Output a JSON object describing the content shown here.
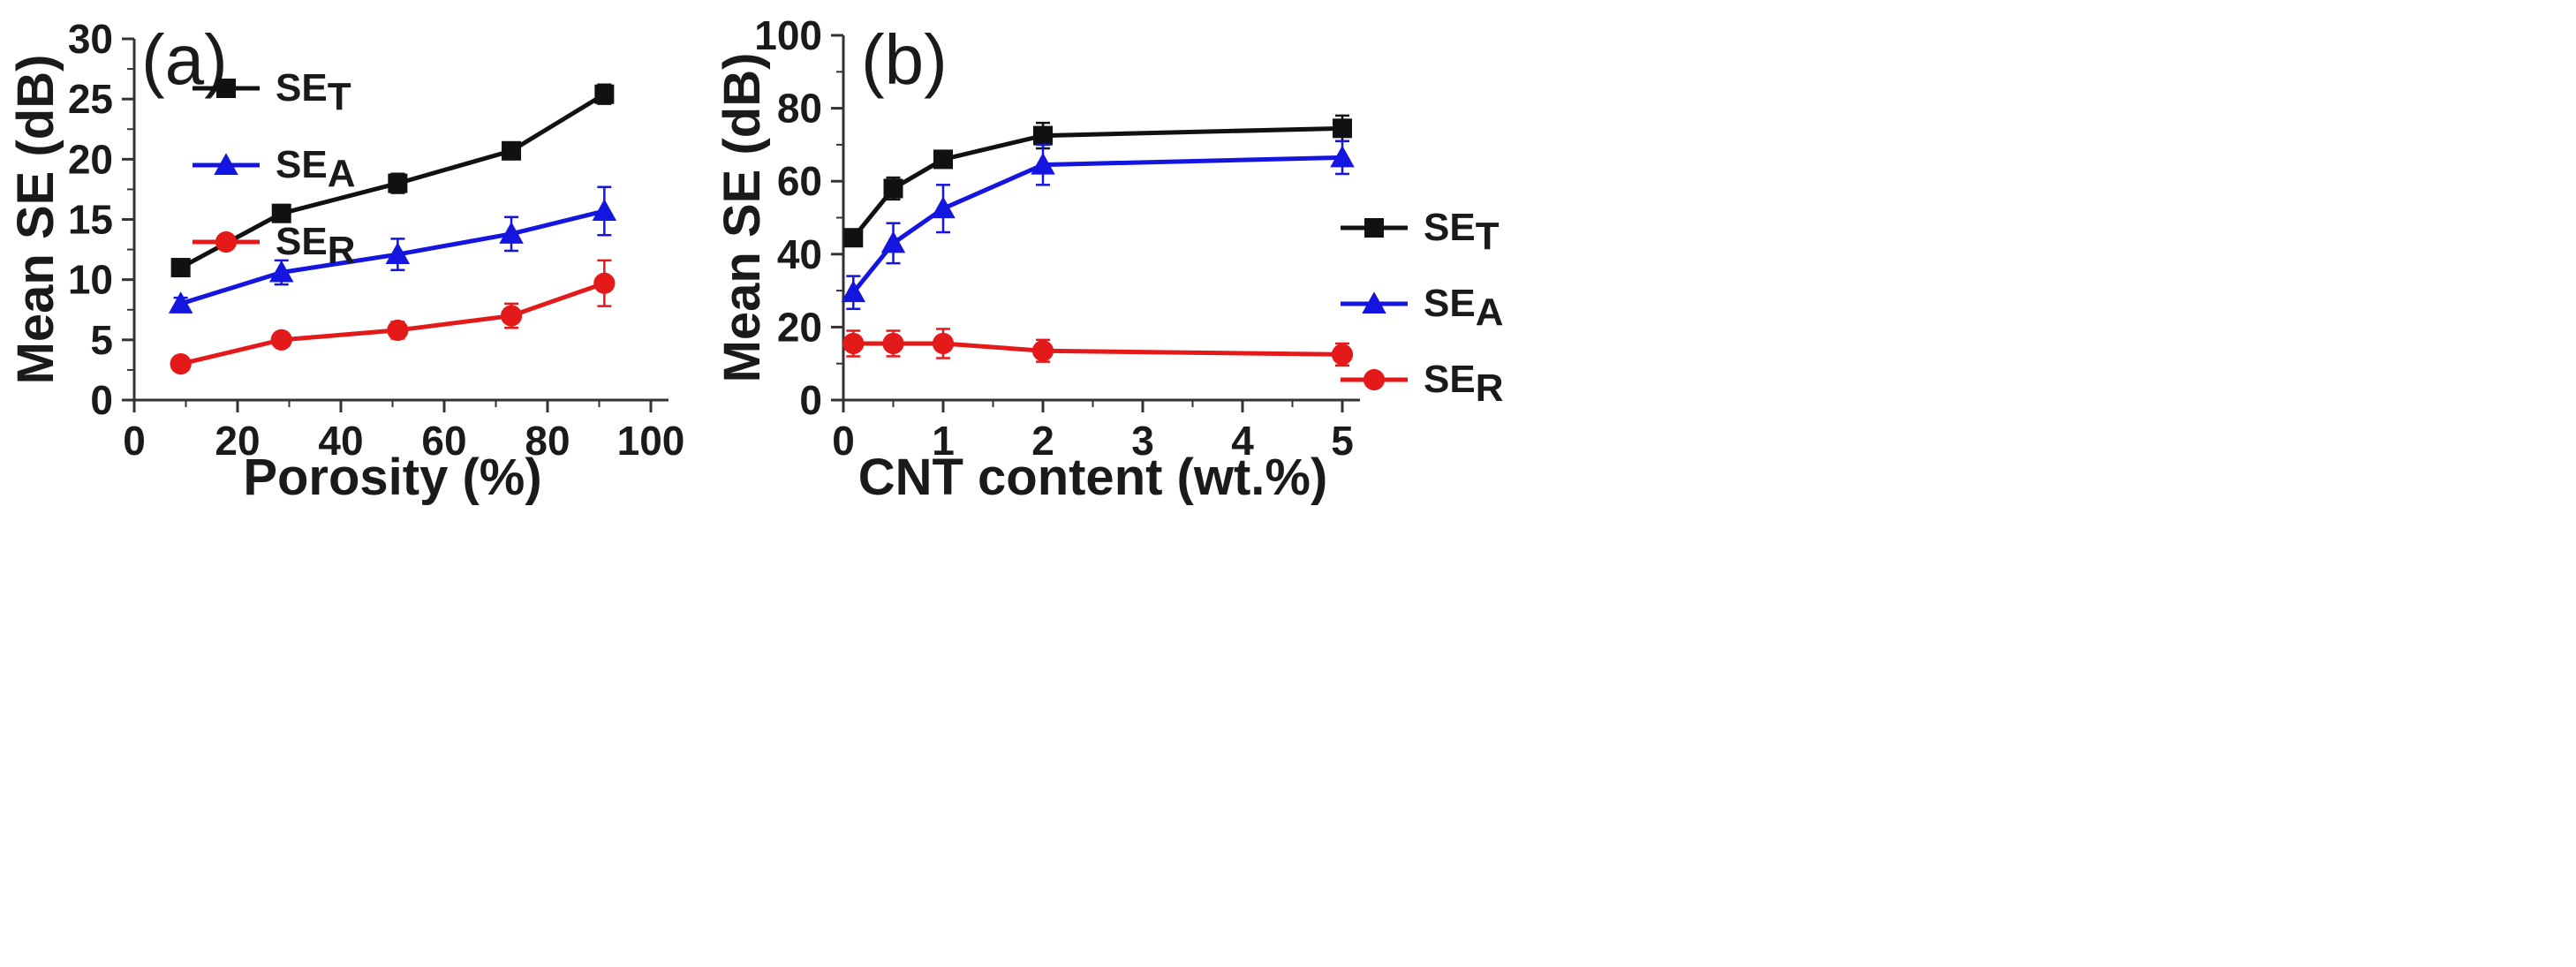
{
  "chart_data": [
    {
      "type": "line",
      "panel_label": "(a)",
      "xlabel": "Porosity (%)",
      "ylabel": "Mean SE (dB)",
      "xlim": [
        0,
        100
      ],
      "ylim": [
        0,
        30
      ],
      "xticks": [
        0,
        20,
        40,
        60,
        80,
        100
      ],
      "yticks": [
        0,
        5,
        10,
        15,
        20,
        25,
        30
      ],
      "xtick_labels": [
        "0",
        "20",
        "40",
        "60",
        "80",
        "100"
      ],
      "ytick_labels": [
        "0",
        "5",
        "10",
        "15",
        "20",
        "25",
        "30"
      ],
      "legend_position": "top-left",
      "x": [
        9,
        28.5,
        51,
        73,
        91
      ],
      "series": [
        {
          "name": "SET",
          "legend_base": "SE",
          "legend_sub": "T",
          "color": "#111111",
          "marker": "square",
          "values": [
            11,
            15.5,
            18,
            20.7,
            25.4
          ],
          "errors": [
            0.6,
            0.7,
            0.8,
            0.6,
            0.8
          ]
        },
        {
          "name": "SEA",
          "legend_base": "SE",
          "legend_sub": "A",
          "color": "#1515e0",
          "marker": "triangle",
          "values": [
            8,
            10.6,
            12.1,
            13.8,
            15.7
          ],
          "errors": [
            0.5,
            1.0,
            1.3,
            1.4,
            2.0
          ]
        },
        {
          "name": "SER",
          "legend_base": "SE",
          "legend_sub": "R",
          "color": "#e41a1a",
          "marker": "circle",
          "values": [
            3,
            5,
            5.8,
            7,
            9.7
          ],
          "errors": [
            0.3,
            0.4,
            0.7,
            1.0,
            1.9
          ]
        }
      ]
    },
    {
      "type": "line",
      "panel_label": "(b)",
      "xlabel": "CNT content (wt.%)",
      "ylabel": "Mean SE (dB)",
      "xlim": [
        0,
        5
      ],
      "ylim": [
        0,
        100
      ],
      "xticks": [
        0,
        1,
        2,
        3,
        4,
        5
      ],
      "yticks": [
        0,
        20,
        40,
        60,
        80,
        100
      ],
      "xtick_labels": [
        "0",
        "1",
        "2",
        "3",
        "4",
        "5"
      ],
      "ytick_labels": [
        "0",
        "20",
        "40",
        "60",
        "80",
        "100"
      ],
      "legend_position": "center-right",
      "x": [
        0.1,
        0.5,
        1,
        2,
        5
      ],
      "series": [
        {
          "name": "SET",
          "legend_base": "SE",
          "legend_sub": "T",
          "color": "#111111",
          "marker": "square",
          "values": [
            44.5,
            58,
            66,
            72.5,
            74.5
          ],
          "errors": [
            1.5,
            3,
            2,
            3.5,
            3.5
          ]
        },
        {
          "name": "SEA",
          "legend_base": "SE",
          "legend_sub": "A",
          "color": "#1515e0",
          "marker": "triangle",
          "values": [
            29.5,
            43,
            52.5,
            64.5,
            66.5
          ],
          "errors": [
            4.5,
            5.5,
            6.5,
            5.5,
            4.5
          ]
        },
        {
          "name": "SER",
          "legend_base": "SE",
          "legend_sub": "R",
          "color": "#e41a1a",
          "marker": "circle",
          "values": [
            15.5,
            15.5,
            15.5,
            13.5,
            12.5
          ],
          "errors": [
            3.5,
            3.5,
            4,
            3,
            3
          ]
        }
      ]
    }
  ]
}
